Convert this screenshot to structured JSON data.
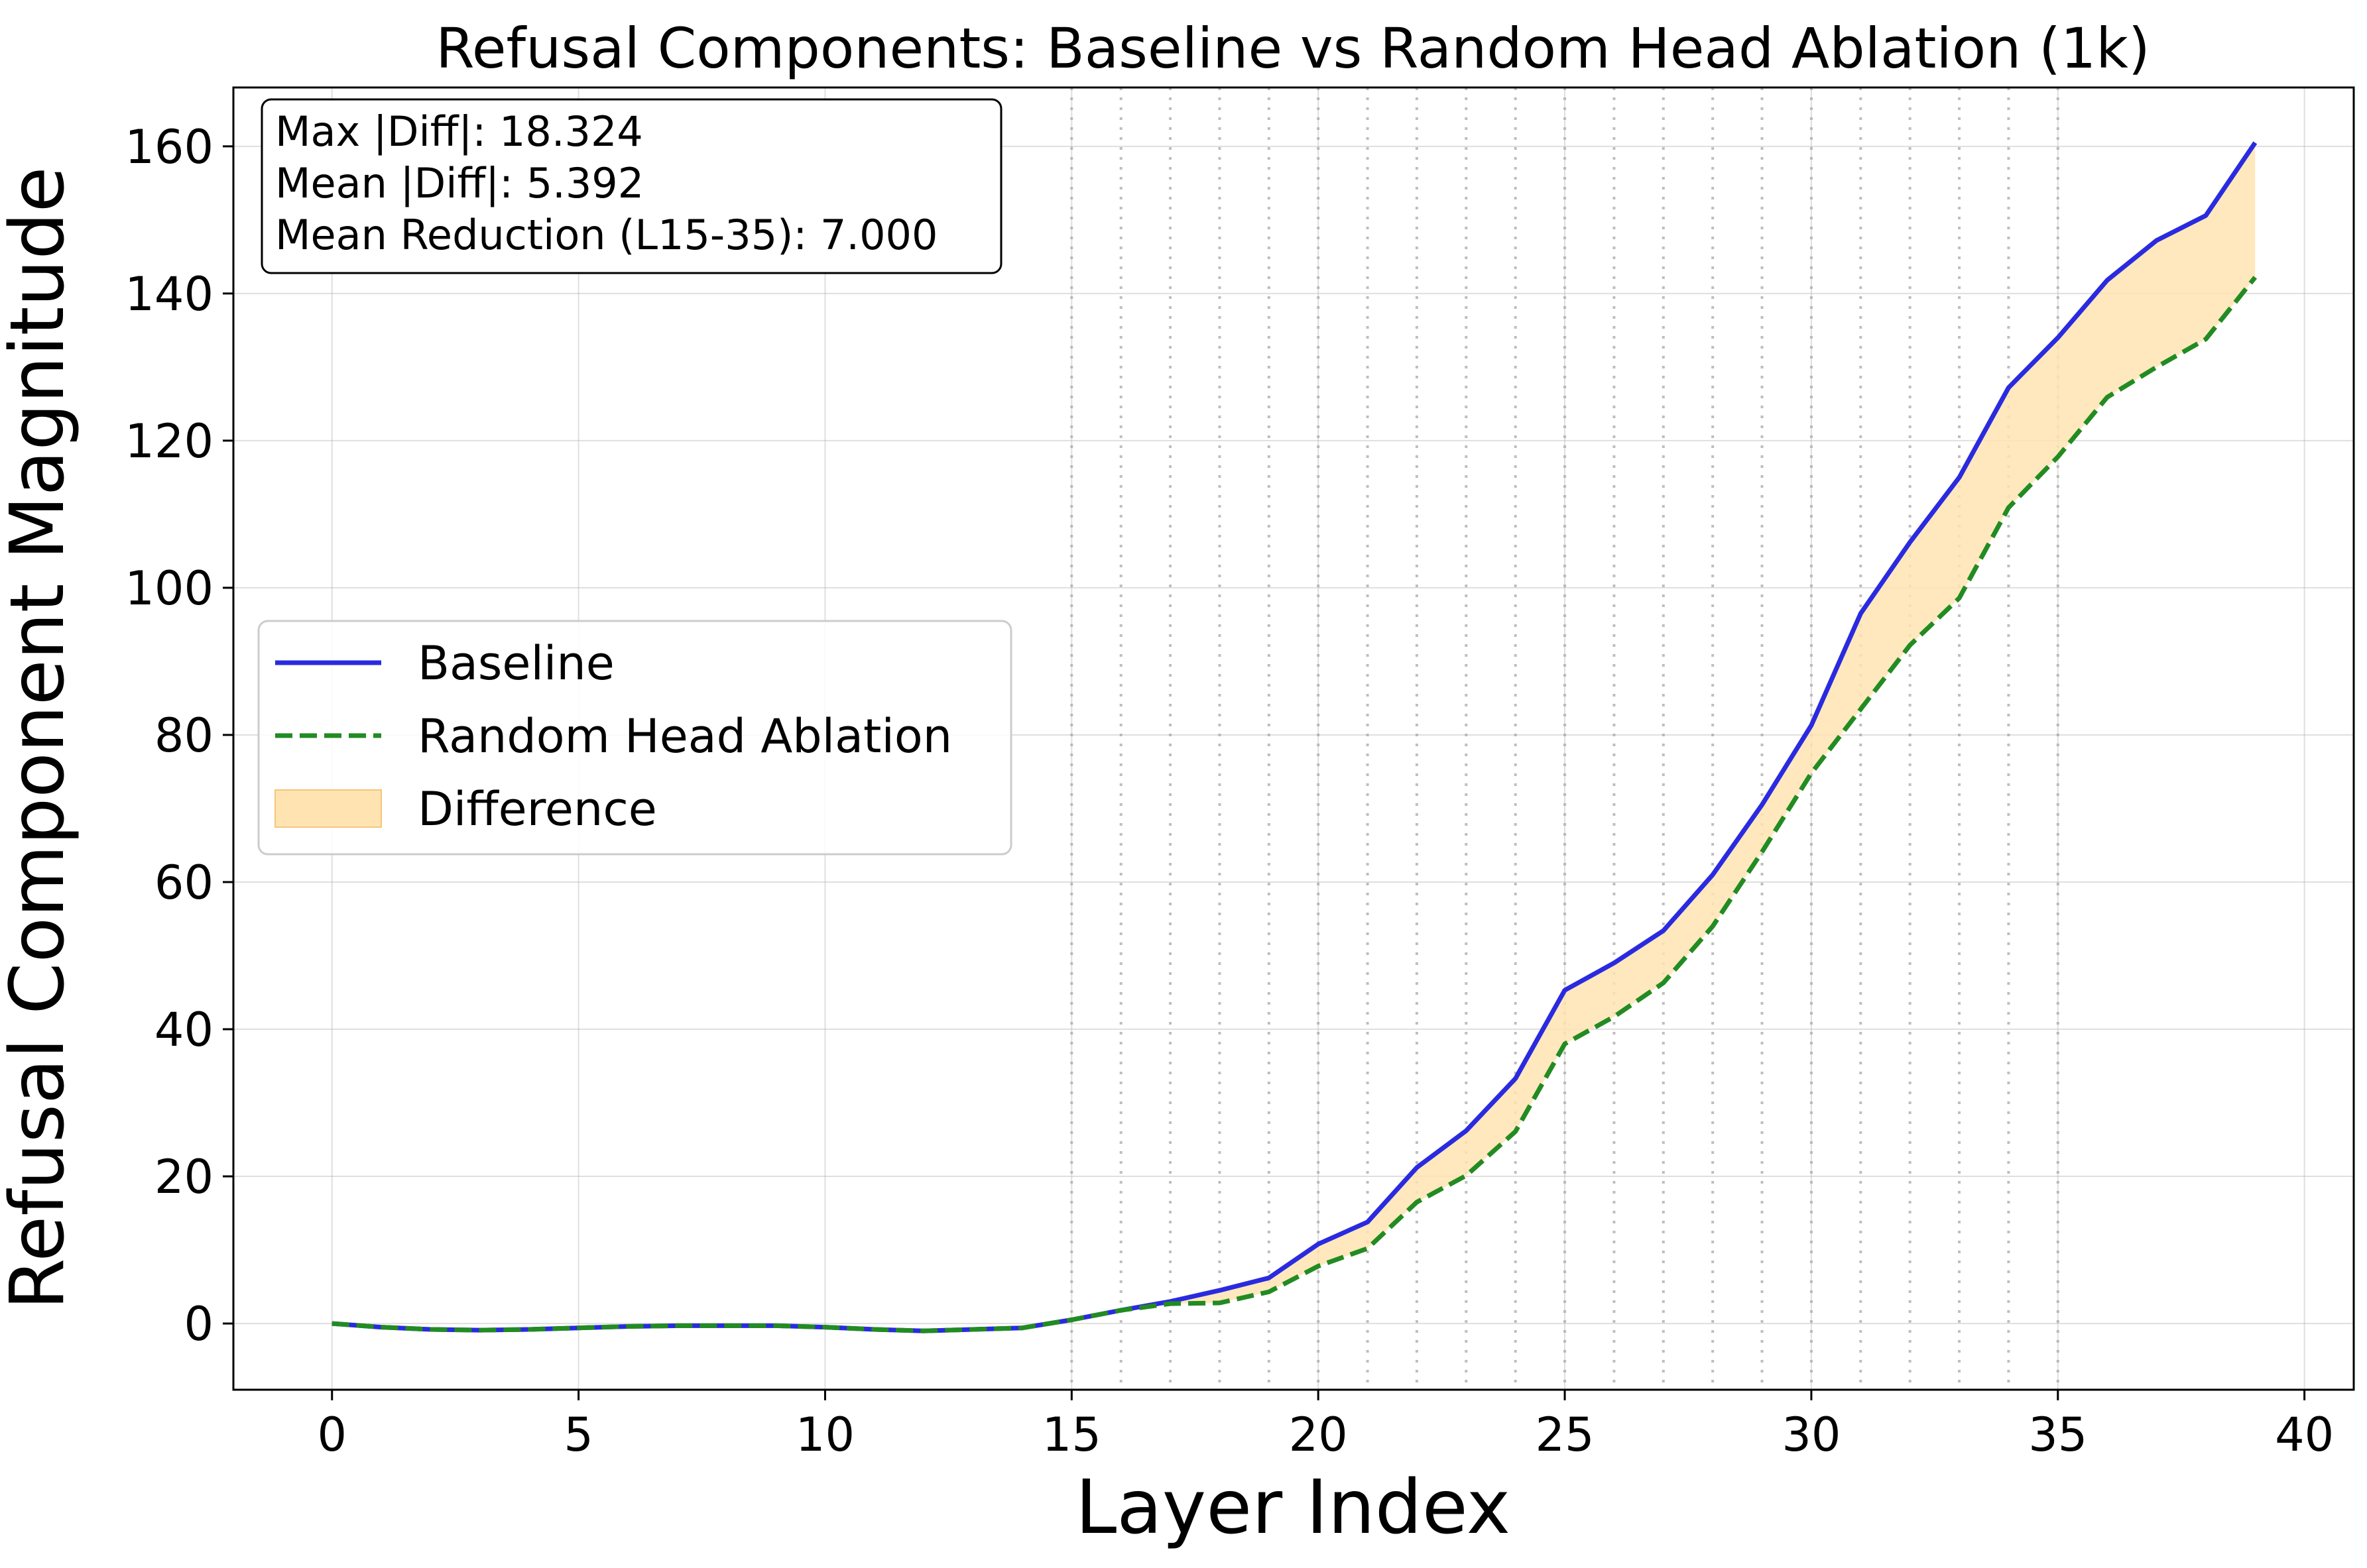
{
  "chart_data": {
    "type": "line",
    "title": "Refusal Components: Baseline vs Random Head Ablation (1k)",
    "xlabel": "Layer Index",
    "ylabel": "Refusal Component Magnitude",
    "xlim": [
      -2,
      41
    ],
    "ylim": [
      -9,
      168
    ],
    "xticks": [
      0,
      5,
      10,
      15,
      20,
      25,
      30,
      35,
      40
    ],
    "yticks": [
      0,
      20,
      40,
      60,
      80,
      100,
      120,
      140,
      160
    ],
    "grid": true,
    "legend_position": "center-left",
    "x": [
      0,
      1,
      2,
      3,
      4,
      5,
      6,
      7,
      8,
      9,
      10,
      11,
      12,
      13,
      14,
      15,
      16,
      17,
      18,
      19,
      20,
      21,
      22,
      23,
      24,
      25,
      26,
      27,
      28,
      29,
      30,
      31,
      32,
      33,
      34,
      35,
      36,
      37,
      38,
      39
    ],
    "series": [
      {
        "name": "Baseline",
        "color": "#2a2ae0",
        "style": "solid",
        "values": [
          0.0,
          -0.5,
          -0.8,
          -0.9,
          -0.8,
          -0.6,
          -0.4,
          -0.3,
          -0.3,
          -0.3,
          -0.5,
          -0.8,
          -1.0,
          -0.8,
          -0.6,
          0.5,
          1.8,
          3.0,
          4.5,
          6.2,
          10.8,
          13.8,
          21.2,
          26.2,
          33.3,
          45.3,
          49.0,
          53.4,
          61.0,
          70.5,
          81.3,
          96.5,
          106.2,
          115.0,
          127.2,
          134.0,
          141.8,
          147.2,
          150.6,
          160.5
        ]
      },
      {
        "name": "Random Head Ablation",
        "color": "#228b22",
        "style": "dashed",
        "values": [
          0.0,
          -0.5,
          -0.8,
          -0.9,
          -0.8,
          -0.6,
          -0.4,
          -0.3,
          -0.3,
          -0.3,
          -0.5,
          -0.8,
          -1.0,
          -0.8,
          -0.6,
          0.5,
          1.8,
          2.7,
          2.8,
          4.3,
          7.8,
          10.2,
          16.5,
          20.1,
          26.1,
          38.0,
          41.7,
          46.3,
          54.0,
          64.1,
          74.8,
          83.5,
          92.2,
          98.6,
          110.9,
          117.8,
          125.9,
          130.0,
          133.8,
          142.2
        ]
      }
    ],
    "difference": {
      "name": "Difference",
      "color": "#ffe4b2"
    },
    "ablated_layers": [
      15,
      16,
      17,
      18,
      19,
      20,
      21,
      22,
      23,
      24,
      25,
      26,
      27,
      28,
      29,
      30,
      31,
      32,
      33,
      34,
      35
    ],
    "stats": {
      "max_diff": "Max |Diff|: 18.324",
      "mean_diff": "Mean |Diff|: 5.392",
      "mean_reduction": "Mean Reduction (L15-35): 7.000"
    }
  }
}
